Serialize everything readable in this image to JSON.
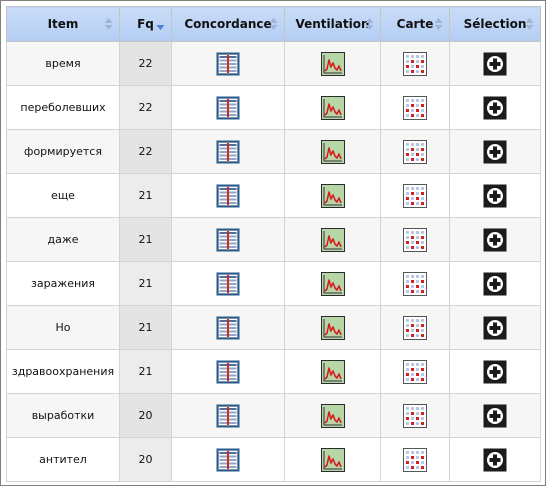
{
  "table": {
    "columns": [
      {
        "key": "item",
        "label": "Item",
        "sort": "both"
      },
      {
        "key": "fq",
        "label": "Fq",
        "sort": "desc"
      },
      {
        "key": "concordance",
        "label": "Concordance",
        "sort": "both"
      },
      {
        "key": "ventilation",
        "label": "Ventilation",
        "sort": "both"
      },
      {
        "key": "carte",
        "label": "Carte",
        "sort": "both"
      },
      {
        "key": "selection",
        "label": "Sélection",
        "sort": "both"
      }
    ],
    "rows": [
      {
        "item": "время",
        "fq": "22"
      },
      {
        "item": "переболевших",
        "fq": "22"
      },
      {
        "item": "формируется",
        "fq": "22"
      },
      {
        "item": "еще",
        "fq": "21"
      },
      {
        "item": "даже",
        "fq": "21"
      },
      {
        "item": "заражения",
        "fq": "21"
      },
      {
        "item": "Но",
        "fq": "21"
      },
      {
        "item": "здравоохранения",
        "fq": "21"
      },
      {
        "item": "выработки",
        "fq": "20"
      },
      {
        "item": "антител",
        "fq": "20"
      }
    ],
    "icons": {
      "concordance": "concordance-icon",
      "ventilation": "ventilation-chart-icon",
      "carte": "map-grid-icon",
      "selection": "add-to-selection-icon"
    }
  },
  "colors": {
    "header_bg": "#b9d1f4",
    "sort_active": "#4a7ed8",
    "sort_inactive": "#9fb4d6",
    "fq_column_bg": "#e4e4e4"
  }
}
